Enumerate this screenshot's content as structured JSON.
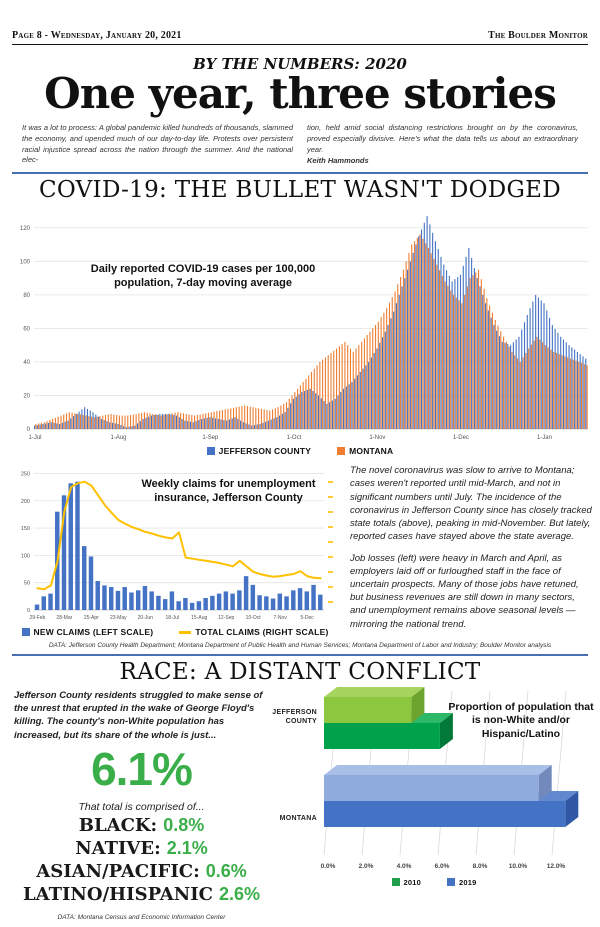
{
  "page": {
    "header_left": "Page 8 - Wednesday, January 20, 2021",
    "header_right": "The Boulder Monitor",
    "kicker": "BY THE NUMBERS: 2020",
    "headline": "One year, three stories",
    "intro_col1": "It was a lot to process: A global pandemic killed hundreds of thousands, slammed the economy, and upended much of our day-to-day life. Protests over persistent racial injustice spread across the nation through the summer. And the national elec-",
    "intro_col2": "tion,  held amid social distancing restrictions brought on by the coronavirus, proved especially divisive. Here's what the data tells us about an extraordinary year.",
    "byline": "Keith Hammonds",
    "accent_blue": "#4a6fb5"
  },
  "covid_section": {
    "heading": "COVID-19: THE BULLET WASN'T DODGED",
    "commentary_p1": "The novel coronavirus was slow to arrive to Montana; cases weren't reported until mid-March, and not in significant numbers until July. The incidence of the coronavirus in Jefferson County since has closely tracked state totals (above), peaking in mid-November. But lately, reported cases have stayed above the state average.",
    "commentary_p2": "Job losses (left) were heavy in March and April, as employers laid off or furloughed staff in the face of uncertain prospects. Many of those jobs have retuned, but business revenues are still down in many sectors, and unemployment remains above seasonal levels — mirroring the national trend.",
    "data_credit": "DATA: Jefferson County Health Department; Montana Department of Public Health and Human Services; Montana Department of Labor and Industry; Boulder Monitor analysis"
  },
  "race_section": {
    "heading": "RACE: A DISTANT CONFLICT",
    "intro": "Jefferson County residents struggled to make sense of the unrest that erupted in the wake of George Floyd's killing. The county's non-White population has increased, but its share of the whole is just...",
    "big_value": "6.1%",
    "comprised_label": "That total is comprised of...",
    "breakdown": [
      {
        "label": "BLACK:",
        "value": "0.8%"
      },
      {
        "label": "NATIVE:",
        "value": "2.1%"
      },
      {
        "label": "ASIAN/PACIFIC:",
        "value": "0.6%"
      },
      {
        "label": "LATINO/HISPANIC",
        "value": "2.6%"
      }
    ],
    "green": "#3aae49",
    "data_credit": "DATA: Montana Census and Economic Information Center"
  },
  "chart_data": [
    {
      "type": "bar",
      "title": "Daily reported COVID-19 cases per 100,000 population, 7-day moving average",
      "x_tick_labels": [
        "1-Jul",
        "1-Aug",
        "1-Sep",
        "1-Oct",
        "1-Nov",
        "1-Dec",
        "1-Jan"
      ],
      "x_tick_indices": [
        0,
        10,
        21,
        31,
        41,
        51,
        61
      ],
      "sampling_note": "values estimated from chart at 3-day intervals, 1-Jul-2020 through mid-Jan-2021",
      "ylim": [
        0,
        130
      ],
      "yticks": [
        0,
        20,
        40,
        60,
        80,
        100,
        120
      ],
      "grid": true,
      "legend_position": "bottom",
      "series": [
        {
          "name": "JEFFERSON COUNTY",
          "color": "#4472c4",
          "values": [
            2,
            3,
            4,
            3,
            5,
            9,
            13,
            10,
            6,
            4,
            3,
            1,
            2,
            6,
            8,
            9,
            9,
            8,
            5,
            4,
            6,
            7,
            6,
            5,
            7,
            4,
            2,
            3,
            5,
            7,
            10,
            18,
            22,
            24,
            20,
            15,
            18,
            24,
            28,
            34,
            40,
            48,
            58,
            70,
            85,
            100,
            115,
            127,
            112,
            98,
            88,
            92,
            108,
            90,
            75,
            62,
            52,
            50,
            55,
            68,
            80,
            75,
            62,
            55,
            50,
            46,
            42
          ]
        },
        {
          "name": "MONTANA",
          "color": "#ed7d31",
          "values": [
            3,
            4,
            6,
            8,
            10,
            9,
            8,
            7,
            8,
            9,
            8,
            8,
            9,
            10,
            9,
            8,
            9,
            10,
            9,
            8,
            9,
            10,
            11,
            12,
            13,
            14,
            13,
            12,
            11,
            13,
            16,
            22,
            28,
            34,
            40,
            44,
            48,
            52,
            46,
            52,
            58,
            64,
            72,
            82,
            95,
            110,
            116,
            108,
            98,
            88,
            80,
            75,
            90,
            95,
            78,
            65,
            55,
            46,
            40,
            48,
            55,
            50,
            46,
            44,
            42,
            40,
            38
          ]
        }
      ]
    },
    {
      "type": "bar+line",
      "title": "Weekly claims for unemployment insurance, Jefferson County",
      "x_tick_labels": [
        "29-Feb",
        "28-Mar",
        "25-Apr",
        "23-May",
        "20-Jun",
        "18-Jul",
        "15-Aug",
        "12-Sep",
        "10-Oct",
        "7-Nov",
        "5-Dec"
      ],
      "x_tick_every": 4,
      "ylim_left": [
        0,
        250
      ],
      "yticks_left": [
        0,
        50,
        100,
        150,
        200,
        250
      ],
      "right_axis_labels_visible": false,
      "right_axis_tick_color": "#ffc000",
      "grid": true,
      "legend": [
        {
          "name": "NEW CLAIMS (LEFT SCALE)",
          "color": "#4472c4",
          "swatch": "square"
        },
        {
          "name": "TOTAL CLAIMS (RIGHT SCALE)",
          "color": "#ffc000",
          "swatch": "line"
        }
      ],
      "new_claims": [
        10,
        25,
        30,
        180,
        210,
        232,
        235,
        117,
        98,
        53,
        45,
        42,
        35,
        42,
        32,
        36,
        44,
        34,
        26,
        20,
        34,
        16,
        22,
        13,
        16,
        22,
        26,
        30,
        34,
        30,
        36,
        62,
        46,
        27,
        25,
        21,
        30,
        25,
        36,
        40,
        34,
        46,
        28
      ],
      "total_claims_line_left_scale_units": [
        40,
        38,
        45,
        90,
        180,
        225,
        232,
        235,
        228,
        210,
        192,
        178,
        165,
        158,
        152,
        148,
        143,
        140,
        136,
        133,
        131,
        142,
        96,
        94,
        92,
        90,
        88,
        86,
        83,
        80,
        90,
        80,
        70,
        66,
        63,
        61,
        62,
        64,
        66,
        71,
        62,
        59,
        58
      ]
    },
    {
      "type": "bar",
      "orientation": "horizontal-3d",
      "annotation": "Proportion of population that is non-White and/or Hispanic/Latino",
      "categories": [
        {
          "key": "jefferson",
          "label_lines": [
            "JEFFERSON",
            "COUNTY"
          ]
        },
        {
          "key": "montana",
          "label_lines": [
            "MONTANA"
          ]
        }
      ],
      "series": [
        {
          "name": "2010",
          "values": [
            4.6,
            11.3
          ]
        },
        {
          "name": "2019",
          "values": [
            6.1,
            12.7
          ]
        }
      ],
      "unit": "%",
      "xlim": [
        0,
        13
      ],
      "x_tick_labels": [
        "0.0%",
        "2.0%",
        "4.0%",
        "6.0%",
        "8.0%",
        "10.0%",
        "12.0%"
      ],
      "legend": [
        {
          "name": "2010",
          "color": "#1f9e4c",
          "swatch": "square"
        },
        {
          "name": "2019",
          "color": "#4472c4",
          "swatch": "square"
        }
      ],
      "bar_colors": {
        "jefferson_2010": {
          "front": "#8dc63f",
          "top": "#a7d45f",
          "side": "#6da32f"
        },
        "jefferson_2019": {
          "front": "#00a14b",
          "top": "#2bb968",
          "side": "#017a39"
        },
        "montana_2010": {
          "front": "#8faadc",
          "top": "#aabfe8",
          "side": "#7189bb"
        },
        "montana_2019": {
          "front": "#4472c4",
          "top": "#6288d0",
          "side": "#2f57a3"
        }
      }
    }
  ]
}
